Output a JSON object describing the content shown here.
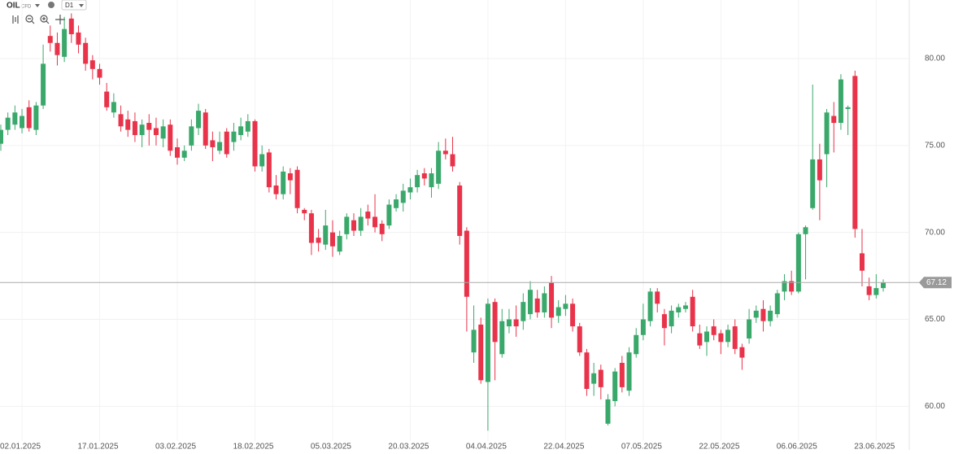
{
  "header": {
    "symbol": "OIL",
    "kind": "CFD",
    "timeframe": "D1"
  },
  "chart_data": {
    "type": "candlestick",
    "categories": [
      null,
      null,
      null,
      "02.01.2025",
      null,
      null,
      null,
      null,
      null,
      null,
      null,
      null,
      null,
      null,
      "17.01.2025",
      null,
      null,
      null,
      null,
      null,
      null,
      null,
      null,
      null,
      null,
      "03.02.2025",
      null,
      null,
      null,
      null,
      null,
      null,
      null,
      null,
      null,
      null,
      "18.02.2025",
      null,
      null,
      null,
      null,
      null,
      null,
      null,
      null,
      null,
      null,
      "05.03.2025",
      null,
      null,
      null,
      null,
      null,
      null,
      null,
      null,
      null,
      null,
      "20.03.2025",
      null,
      null,
      null,
      null,
      null,
      null,
      null,
      null,
      null,
      null,
      "04.04.2025",
      null,
      null,
      null,
      null,
      null,
      null,
      null,
      null,
      null,
      null,
      "22.04.2025",
      null,
      null,
      null,
      null,
      null,
      null,
      null,
      null,
      null,
      null,
      "07.05.2025",
      null,
      null,
      null,
      null,
      null,
      null,
      null,
      null,
      null,
      null,
      "22.05.2025",
      null,
      null,
      null,
      null,
      null,
      null,
      null,
      null,
      null,
      null,
      "06.06.2025",
      null,
      null,
      null,
      null,
      null,
      null,
      null,
      null,
      null,
      null,
      "23.06.2025",
      null
    ],
    "open": [
      75.1,
      75.9,
      76.2,
      76.0,
      77.2,
      75.9,
      77.3,
      81.3,
      80.9,
      80.1,
      82.3,
      81.5,
      80.9,
      79.9,
      79.4,
      78.1,
      76.9,
      76.8,
      76.5,
      76.4,
      75.6,
      76.3,
      76.0,
      75.4,
      76.2,
      74.9,
      74.3,
      75.0,
      76.0,
      76.9,
      75.3,
      74.7,
      75.8,
      75.2,
      75.6,
      75.8,
      76.4,
      73.8,
      74.6,
      72.7,
      72.2,
      73.4,
      73.6,
      71.3,
      71.1,
      69.7,
      69.3,
      70.0,
      68.9,
      69.9,
      70.7,
      70.1,
      71.2,
      70.9,
      70.5,
      70.4,
      71.4,
      71.7,
      72.3,
      72.6,
      73.4,
      72.6,
      72.8,
      74.7,
      74.5,
      72.7,
      70.1,
      63.1,
      64.7,
      61.4,
      66.0,
      63.0,
      64.6,
      65.0,
      64.9,
      65.3,
      66.2,
      65.4,
      67.1,
      65.2,
      65.6,
      65.9,
      64.6,
      63.1,
      61.3,
      62.1,
      59.0,
      60.3,
      62.5,
      60.9,
      63.0,
      64.1,
      64.9,
      66.6,
      65.3,
      64.6,
      65.4,
      65.6,
      66.3,
      64.2,
      63.7,
      64.6,
      64.2,
      63.7,
      64.6,
      63.4,
      63.9,
      65.1,
      65.6,
      64.9,
      65.3,
      66.6,
      67.2,
      66.6,
      69.9,
      71.4,
      74.2,
      74.5,
      76.7,
      76.3,
      77.1,
      79.0,
      68.8,
      66.9,
      66.4,
      66.8
    ],
    "high": [
      76.2,
      76.9,
      77.3,
      77.1,
      77.6,
      77.5,
      80.8,
      81.9,
      81.5,
      82.4,
      82.6,
      81.9,
      81.2,
      80.2,
      79.7,
      78.6,
      78.0,
      77.3,
      77.0,
      76.9,
      76.5,
      76.8,
      76.6,
      76.5,
      76.5,
      75.4,
      75.0,
      76.5,
      77.4,
      77.1,
      75.8,
      75.8,
      76.0,
      76.3,
      76.6,
      76.8,
      76.5,
      75.0,
      74.8,
      73.3,
      73.8,
      73.7,
      73.8,
      71.4,
      71.3,
      70.2,
      71.3,
      70.7,
      70.1,
      71.1,
      71.1,
      71.4,
      71.6,
      72.2,
      70.7,
      71.9,
      72.2,
      72.8,
      73.1,
      73.6,
      73.7,
      73.7,
      75.2,
      75.4,
      75.5,
      72.9,
      70.3,
      65.8,
      65.1,
      66.2,
      66.2,
      65.6,
      65.6,
      65.8,
      66.5,
      67.2,
      66.7,
      66.9,
      67.5,
      66.1,
      66.4,
      66.2,
      64.8,
      63.3,
      62.5,
      62.4,
      60.7,
      62.2,
      62.9,
      63.4,
      64.5,
      65.9,
      66.8,
      66.8,
      65.6,
      65.8,
      65.9,
      66.0,
      66.7,
      64.7,
      64.6,
      65.0,
      64.4,
      64.7,
      65.0,
      63.6,
      65.6,
      65.8,
      66.1,
      65.8,
      66.7,
      67.6,
      67.8,
      70.0,
      70.4,
      78.5,
      75.1,
      77.1,
      77.5,
      79.1,
      77.3,
      79.3,
      70.2,
      67.4,
      67.6,
      67.3
    ],
    "low": [
      74.7,
      75.6,
      75.9,
      75.7,
      75.8,
      75.6,
      77.1,
      80.4,
      79.6,
      79.8,
      80.9,
      80.3,
      79.3,
      78.8,
      78.5,
      77.0,
      76.6,
      75.8,
      75.5,
      75.2,
      74.9,
      75.0,
      75.0,
      74.9,
      74.4,
      73.9,
      74.1,
      74.7,
      75.6,
      74.8,
      74.1,
      74.5,
      74.3,
      74.7,
      75.3,
      75.5,
      73.5,
      73.5,
      72.3,
      71.9,
      71.9,
      72.2,
      71.1,
      70.7,
      68.7,
      68.9,
      69.0,
      68.6,
      68.7,
      69.6,
      69.8,
      69.8,
      70.4,
      70.0,
      69.5,
      70.2,
      71.2,
      71.2,
      71.9,
      72.3,
      72.7,
      72.0,
      72.5,
      74.2,
      73.5,
      69.3,
      64.3,
      62.5,
      61.3,
      58.6,
      61.5,
      62.8,
      64.2,
      64.0,
      64.4,
      65.0,
      65.1,
      65.1,
      64.5,
      64.8,
      65.2,
      64.3,
      62.9,
      60.6,
      60.6,
      60.4,
      58.9,
      60.0,
      60.8,
      60.6,
      62.8,
      63.8,
      64.6,
      65.4,
      63.5,
      64.2,
      65.1,
      65.4,
      64.3,
      63.3,
      62.9,
      63.8,
      63.0,
      63.4,
      63.0,
      62.1,
      63.6,
      64.8,
      64.3,
      64.6,
      65.1,
      66.1,
      66.4,
      66.5,
      67.3,
      71.3,
      70.7,
      72.6,
      74.6,
      75.9,
      75.6,
      69.7,
      66.9,
      66.1,
      66.2,
      66.6
    ],
    "close": [
      75.9,
      76.6,
      76.9,
      76.7,
      76.0,
      77.3,
      79.7,
      80.9,
      80.2,
      81.7,
      81.4,
      80.8,
      79.7,
      79.4,
      78.9,
      77.2,
      77.5,
      76.1,
      75.9,
      75.6,
      76.2,
      75.9,
      75.6,
      76.1,
      74.7,
      74.3,
      74.7,
      76.1,
      77.0,
      75.0,
      74.9,
      75.2,
      74.5,
      75.8,
      76.1,
      76.4,
      73.8,
      74.5,
      72.6,
      72.2,
      73.5,
      73.0,
      71.4,
      71.1,
      69.4,
      69.4,
      70.4,
      69.2,
      69.8,
      70.9,
      70.1,
      70.9,
      70.8,
      70.3,
      69.9,
      71.6,
      71.9,
      72.4,
      72.6,
      73.3,
      73.1,
      73.4,
      74.7,
      74.5,
      73.8,
      69.8,
      66.3,
      64.4,
      61.5,
      65.9,
      63.7,
      64.9,
      65.0,
      64.6,
      66.0,
      66.7,
      65.4,
      66.5,
      65.1,
      65.7,
      65.9,
      64.6,
      63.1,
      61.0,
      61.9,
      61.1,
      60.4,
      62.0,
      61.1,
      63.1,
      64.1,
      65.0,
      66.6,
      65.9,
      64.5,
      65.5,
      65.7,
      65.8,
      64.6,
      63.5,
      64.3,
      64.1,
      63.7,
      64.4,
      63.3,
      62.8,
      65.0,
      65.5,
      64.9,
      65.5,
      66.5,
      67.2,
      66.6,
      69.9,
      70.3,
      74.2,
      73.0,
      76.9,
      76.3,
      78.8,
      77.2,
      70.2,
      67.8,
      66.4,
      66.8,
      67.12
    ],
    "up_color": "#3aa86b",
    "down_color": "#e8334a",
    "ylim": [
      58.1,
      82.9
    ],
    "yticks": [
      {
        "value": 60,
        "label": "60.00"
      },
      {
        "value": 65,
        "label": "65.00"
      },
      {
        "value": 70,
        "label": "70.00"
      },
      {
        "value": 75,
        "label": "75.00"
      },
      {
        "value": 80,
        "label": "80.00"
      }
    ],
    "grid": true
  }
}
